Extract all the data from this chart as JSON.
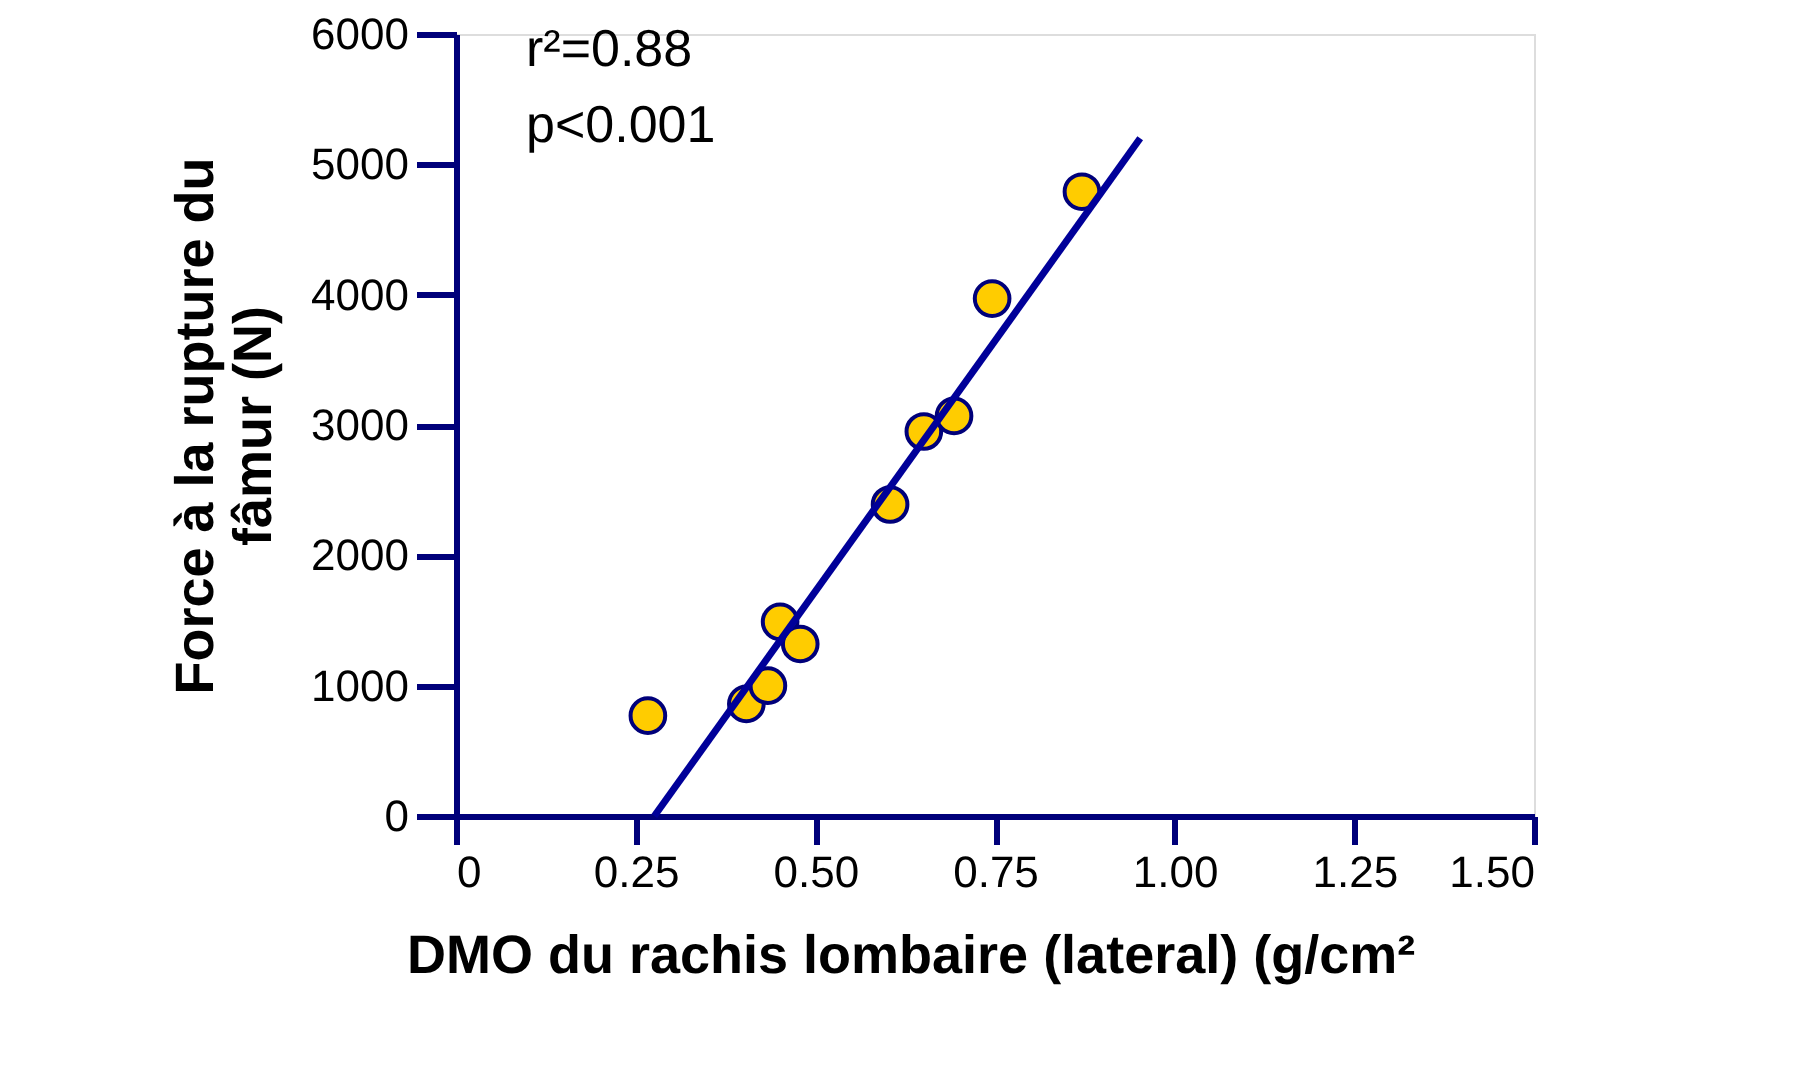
{
  "chart_data": {
    "type": "scatter",
    "xlabel": "DMO du rachis lombaire (lateral) (g/cm²",
    "ylabel": "Force à la rupture du fâmur (N)",
    "annotations": [
      "r²=0.88",
      "p<0.001"
    ],
    "xlim": [
      0,
      1.5
    ],
    "xticks": [
      0,
      0.25,
      {
        "value": 0.5,
        "label": "0.50"
      },
      0.75,
      {
        "value": 1.0,
        "label": "1.00"
      },
      1.25,
      {
        "value": 1.5,
        "label": "1.50"
      }
    ],
    "ylim": [
      0,
      6000
    ],
    "yticks": [
      0,
      1000,
      2000,
      3000,
      4000,
      5000,
      6000
    ],
    "grid": false,
    "marker": "circle",
    "series": [
      {
        "color": "#ffcc00",
        "x": [
          0.267,
          0.404,
          0.434,
          0.451,
          0.479,
          0.604,
          0.651,
          0.693,
          0.746,
          0.871
        ],
        "values": [
          770,
          860,
          1000,
          1490,
          1320,
          2390,
          2950,
          3070,
          3970,
          4790
        ]
      },
      {
        "type": "line",
        "color": "#000099",
        "x": [
          0.276,
          0.952
        ],
        "values": [
          0,
          5200
        ],
        "line_style": "solid",
        "marker": "none"
      }
    ]
  }
}
